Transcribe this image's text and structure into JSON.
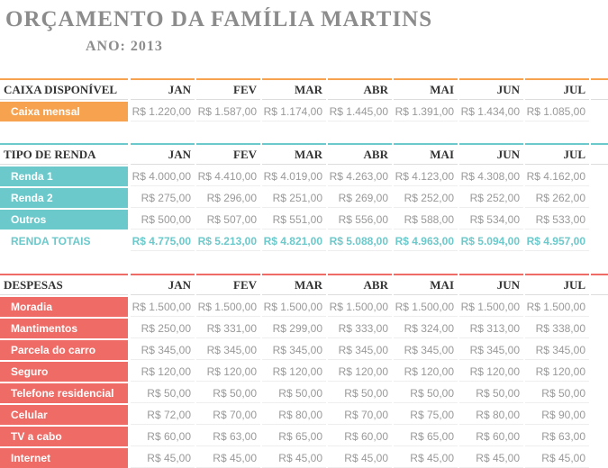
{
  "header": {
    "title": "ORÇAMENTO DA FAMÍLIA MARTINS",
    "year": "ANO: 2013"
  },
  "sections": [
    {
      "title": "CAIXA DISPONÍVEL",
      "color": "#f7a24f",
      "months": [
        "JAN",
        "FEV",
        "MAR",
        "ABR",
        "MAI",
        "JUN",
        "JUL"
      ],
      "rows": [
        {
          "label": "Caixa mensal",
          "values": [
            "R$ 1.220,00",
            "R$ 1.587,00",
            "R$ 1.174,00",
            "R$ 1.445,00",
            "R$ 1.391,00",
            "R$ 1.434,00",
            "R$ 1.085,00"
          ]
        }
      ]
    },
    {
      "title": "TIPO DE RENDA",
      "color": "#6cc9cb",
      "months": [
        "JAN",
        "FEV",
        "MAR",
        "ABR",
        "MAI",
        "JUN",
        "JUL"
      ],
      "rows": [
        {
          "label": "Renda 1",
          "values": [
            "R$ 4.000,00",
            "R$ 4.410,00",
            "R$ 4.019,00",
            "R$ 4.263,00",
            "R$ 4.123,00",
            "R$ 4.308,00",
            "R$ 4.162,00"
          ]
        },
        {
          "label": "Renda 2",
          "values": [
            "R$ 275,00",
            "R$ 296,00",
            "R$ 251,00",
            "R$ 269,00",
            "R$ 252,00",
            "R$ 252,00",
            "R$ 262,00"
          ]
        },
        {
          "label": "Outros",
          "values": [
            "R$ 500,00",
            "R$ 507,00",
            "R$ 551,00",
            "R$ 556,00",
            "R$ 588,00",
            "R$ 534,00",
            "R$ 533,00"
          ]
        }
      ],
      "total": {
        "label": "RENDA TOTAIS",
        "values": [
          "R$ 4.775,00",
          "R$ 5.213,00",
          "R$ 4.821,00",
          "R$ 5.088,00",
          "R$ 4.963,00",
          "R$ 5.094,00",
          "R$ 4.957,00"
        ]
      }
    },
    {
      "title": "DESPESAS",
      "color": "#ee6b66",
      "months": [
        "JAN",
        "FEV",
        "MAR",
        "ABR",
        "MAI",
        "JUN",
        "JUL"
      ],
      "rows": [
        {
          "label": "Moradia",
          "values": [
            "R$ 1.500,00",
            "R$ 1.500,00",
            "R$ 1.500,00",
            "R$ 1.500,00",
            "R$ 1.500,00",
            "R$ 1.500,00",
            "R$ 1.500,00"
          ]
        },
        {
          "label": "Mantimentos",
          "values": [
            "R$ 250,00",
            "R$ 331,00",
            "R$ 299,00",
            "R$ 333,00",
            "R$ 324,00",
            "R$ 313,00",
            "R$ 338,00"
          ]
        },
        {
          "label": "Parcela do carro",
          "values": [
            "R$ 345,00",
            "R$ 345,00",
            "R$ 345,00",
            "R$ 345,00",
            "R$ 345,00",
            "R$ 345,00",
            "R$ 345,00"
          ]
        },
        {
          "label": "Seguro",
          "values": [
            "R$ 120,00",
            "R$ 120,00",
            "R$ 120,00",
            "R$ 120,00",
            "R$ 120,00",
            "R$ 120,00",
            "R$ 120,00"
          ]
        },
        {
          "label": "Telefone residencial",
          "values": [
            "R$ 50,00",
            "R$ 50,00",
            "R$ 50,00",
            "R$ 50,00",
            "R$ 50,00",
            "R$ 50,00",
            "R$ 50,00"
          ]
        },
        {
          "label": "Celular",
          "values": [
            "R$ 72,00",
            "R$ 70,00",
            "R$ 80,00",
            "R$ 70,00",
            "R$ 75,00",
            "R$ 80,00",
            "R$ 90,00"
          ]
        },
        {
          "label": "TV a cabo",
          "values": [
            "R$ 60,00",
            "R$ 63,00",
            "R$ 65,00",
            "R$ 60,00",
            "R$ 65,00",
            "R$ 60,00",
            "R$ 63,00"
          ]
        },
        {
          "label": "Internet",
          "values": [
            "R$ 45,00",
            "R$ 45,00",
            "R$ 45,00",
            "R$ 45,00",
            "R$ 45,00",
            "R$ 45,00",
            "R$ 45,00"
          ]
        }
      ]
    }
  ]
}
